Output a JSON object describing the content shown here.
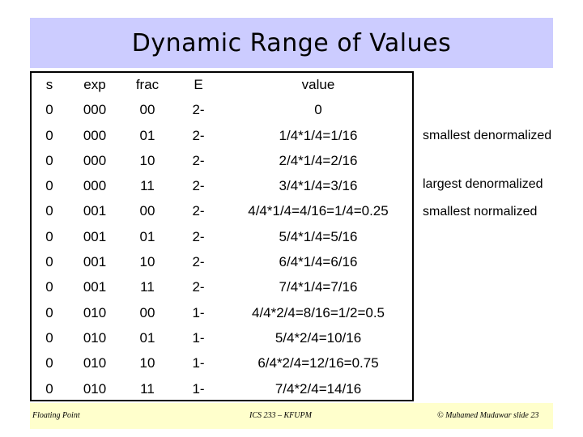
{
  "slide": {
    "title": "Dynamic Range of Values"
  },
  "table": {
    "headers": {
      "s": "s",
      "exp": "exp",
      "frac": "frac",
      "e": "E",
      "value": "value"
    },
    "rows": [
      {
        "s": "0",
        "exp": "000",
        "frac": "00",
        "e": "2-",
        "value": "0"
      },
      {
        "s": "0",
        "exp": "000",
        "frac": "01",
        "e": "2-",
        "value": "1/4*1/4=1/16"
      },
      {
        "s": "0",
        "exp": "000",
        "frac": "10",
        "e": "2-",
        "value": "2/4*1/4=2/16"
      },
      {
        "s": "0",
        "exp": "000",
        "frac": "11",
        "e": "2-",
        "value": "3/4*1/4=3/16"
      },
      {
        "s": "0",
        "exp": "001",
        "frac": "00",
        "e": "2-",
        "value": "4/4*1/4=4/16=1/4=0.25"
      },
      {
        "s": "0",
        "exp": "001",
        "frac": "01",
        "e": "2-",
        "value": "5/4*1/4=5/16"
      },
      {
        "s": "0",
        "exp": "001",
        "frac": "10",
        "e": "2-",
        "value": "6/4*1/4=6/16"
      },
      {
        "s": "0",
        "exp": "001",
        "frac": "11",
        "e": "2-",
        "value": "7/4*1/4=7/16"
      },
      {
        "s": "0",
        "exp": "010",
        "frac": "00",
        "e": "1-",
        "value": "4/4*2/4=8/16=1/2=0.5"
      },
      {
        "s": "0",
        "exp": "010",
        "frac": "01",
        "e": "1-",
        "value": "5/4*2/4=10/16"
      },
      {
        "s": "0",
        "exp": "010",
        "frac": "10",
        "e": "1-",
        "value": "6/4*2/4=12/16=0.75"
      },
      {
        "s": "0",
        "exp": "010",
        "frac": "11",
        "e": "1-",
        "value": "7/4*2/4=14/16"
      }
    ]
  },
  "annotations": {
    "smallest_denormalized": "smallest denormalized",
    "largest_denormalized": "largest denormalized",
    "smallest_normalized": "smallest normalized"
  },
  "footer": {
    "left": "Floating Point",
    "center": "ICS 233 – KFUPM",
    "right": "© Muhamed Mudawar slide 23"
  },
  "colors": {
    "title_background": "#ccccff",
    "footer_background": "#ffffcc"
  }
}
